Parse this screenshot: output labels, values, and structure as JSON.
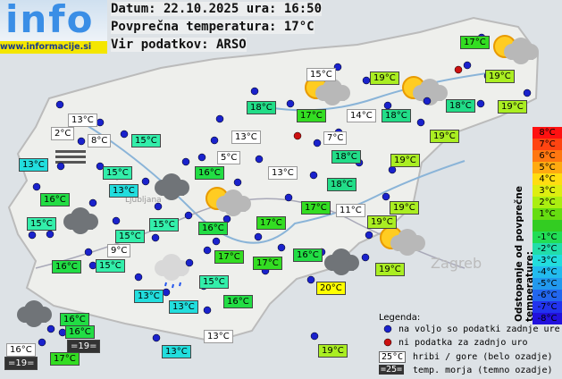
{
  "header": {
    "logo": "info",
    "site": "www.informacije.si",
    "lines": [
      "Datum: 22.10.2025 ura: 16:50",
      "Povprečna temperatura: 17°C",
      "Vir podatkov: ARSO"
    ]
  },
  "places": [
    "Ljubljana",
    "Zagreb"
  ],
  "stations": [
    {
      "label": "17°C",
      "bg": "#33dd22"
    },
    {
      "label": "15°C",
      "bg": "#ffffff"
    },
    {
      "label": "19°C",
      "bg": "#aaee22"
    },
    {
      "label": "19°C",
      "bg": "#aaee22"
    },
    {
      "label": "18°C",
      "bg": "#22dd88"
    },
    {
      "label": "17°C",
      "bg": "#33dd22"
    },
    {
      "label": "14°C",
      "bg": "#ffffff"
    },
    {
      "label": "18°C",
      "bg": "#22dd88"
    },
    {
      "label": "18°C",
      "bg": "#22dd88"
    },
    {
      "label": "19°C",
      "bg": "#aaee22"
    },
    {
      "label": "19°C",
      "bg": "#aaee22"
    },
    {
      "label": "13°C",
      "bg": "#ffffff"
    },
    {
      "label": "2°C",
      "bg": "#ffffff"
    },
    {
      "label": "8°C",
      "bg": "#ffffff"
    },
    {
      "label": "15°C",
      "bg": "#33eeaa"
    },
    {
      "label": "13°C",
      "bg": "#ffffff"
    },
    {
      "label": "7°C",
      "bg": "#ffffff"
    },
    {
      "label": "13°C",
      "bg": "#22dddd"
    },
    {
      "label": "5°C",
      "bg": "#ffffff"
    },
    {
      "label": "18°C",
      "bg": "#22dd88"
    },
    {
      "label": "19°C",
      "bg": "#aaee22"
    },
    {
      "label": "15°C",
      "bg": "#33eeaa"
    },
    {
      "label": "16°C",
      "bg": "#22dd44"
    },
    {
      "label": "13°C",
      "bg": "#ffffff"
    },
    {
      "label": "18°C",
      "bg": "#22dd88"
    },
    {
      "label": "13°C",
      "bg": "#22dddd"
    },
    {
      "label": "16°C",
      "bg": "#22dd44"
    },
    {
      "label": "17°C",
      "bg": "#33dd22"
    },
    {
      "label": "11°C",
      "bg": "#ffffff"
    },
    {
      "label": "19°C",
      "bg": "#aaee22"
    },
    {
      "label": "15°C",
      "bg": "#33eeaa"
    },
    {
      "label": "15°C",
      "bg": "#33eeaa"
    },
    {
      "label": "16°C",
      "bg": "#22dd44"
    },
    {
      "label": "17°C",
      "bg": "#33dd22"
    },
    {
      "label": "19°C",
      "bg": "#aaee22"
    },
    {
      "label": "15°C",
      "bg": "#33eeaa"
    },
    {
      "label": "9°C",
      "bg": "#ffffff"
    },
    {
      "label": "17°C",
      "bg": "#33dd22"
    },
    {
      "label": "16°C",
      "bg": "#22dd44"
    },
    {
      "label": "16°C",
      "bg": "#22dd44"
    },
    {
      "label": "15°C",
      "bg": "#33eeaa"
    },
    {
      "label": "17°C",
      "bg": "#33dd22"
    },
    {
      "label": "19°C",
      "bg": "#aaee22"
    },
    {
      "label": "15°C",
      "bg": "#33eeaa"
    },
    {
      "label": "20°C",
      "bg": "#ffff00"
    },
    {
      "label": "13°C",
      "bg": "#22dddd"
    },
    {
      "label": "13°C",
      "bg": "#22dddd"
    },
    {
      "label": "16°C",
      "bg": "#22dd44"
    },
    {
      "label": "16°C",
      "bg": "#22dd44"
    },
    {
      "label": "16°C",
      "bg": "#22dd44"
    },
    {
      "label": "=19=",
      "bg": "#333333"
    },
    {
      "label": "13°C",
      "bg": "#ffffff"
    },
    {
      "label": "16°C",
      "bg": "#ffffff"
    },
    {
      "label": "17°C",
      "bg": "#33dd22"
    },
    {
      "label": "=19=",
      "bg": "#333333"
    },
    {
      "label": "13°C",
      "bg": "#22dddd"
    },
    {
      "label": "19°C",
      "bg": "#aaee22"
    }
  ],
  "scale": {
    "title": "Odstopanje od povprečne temperature:",
    "items": [
      {
        "label": "8°C",
        "color": "#ff1111"
      },
      {
        "label": "7°C",
        "color": "#ff4411"
      },
      {
        "label": "6°C",
        "color": "#ff7711"
      },
      {
        "label": "5°C",
        "color": "#ffaa11"
      },
      {
        "label": "4°C",
        "color": "#ffdd11"
      },
      {
        "label": "3°C",
        "color": "#ddee11"
      },
      {
        "label": "2°C",
        "color": "#aaee11"
      },
      {
        "label": "1°C",
        "color": "#66dd11"
      },
      {
        "label": null,
        "color": "#33cc22"
      },
      {
        "label": "-1°C",
        "color": "#22dd55"
      },
      {
        "label": "-2°C",
        "color": "#22ddaa"
      },
      {
        "label": "-3°C",
        "color": "#22dddd"
      },
      {
        "label": "-4°C",
        "color": "#22bbee"
      },
      {
        "label": "-5°C",
        "color": "#2299ee"
      },
      {
        "label": "-6°C",
        "color": "#2266ee"
      },
      {
        "label": "-7°C",
        "color": "#2233ee"
      },
      {
        "label": "-8°C",
        "color": "#2211dd"
      }
    ]
  },
  "legend": {
    "title": "Legenda:",
    "available": "na voljo so podatki zadnje ure",
    "missing": "ni podatka za zadnjo uro",
    "mountain_sample": "25°C",
    "mountain": "hribi / gore (belo ozadje)",
    "sea_sample": "=25=",
    "sea": "temp. morja (temno ozadje)"
  }
}
